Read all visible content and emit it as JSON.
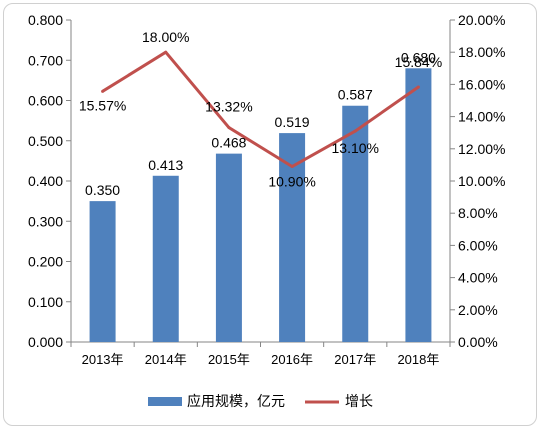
{
  "chart_data": {
    "type": "bar+line",
    "categories": [
      "2013年",
      "2014年",
      "2015年",
      "2016年",
      "2017年",
      "2018年"
    ],
    "bar_series": {
      "name": "应用规模，亿元",
      "values": [
        0.35,
        0.413,
        0.468,
        0.519,
        0.587,
        0.68
      ],
      "labels": [
        "0.350",
        "0.413",
        "0.468",
        "0.519",
        "0.587",
        "0.680"
      ],
      "color": "#4f81bd"
    },
    "line_series": {
      "name": "增长",
      "values": [
        15.57,
        18.0,
        13.32,
        10.9,
        13.1,
        15.84
      ],
      "labels": [
        "15.57%",
        "18.00%",
        "13.32%",
        "10.90%",
        "13.10%",
        "15.84%"
      ],
      "color": "#c0504d"
    },
    "y_left": {
      "ylim": [
        0,
        0.8
      ],
      "ticks": [
        "0.000",
        "0.100",
        "0.200",
        "0.300",
        "0.400",
        "0.500",
        "0.600",
        "0.700",
        "0.800"
      ]
    },
    "y_right": {
      "ylim": [
        0,
        20
      ],
      "ticks": [
        "0.00%",
        "2.00%",
        "4.00%",
        "6.00%",
        "8.00%",
        "10.00%",
        "12.00%",
        "14.00%",
        "16.00%",
        "18.00%",
        "20.00%"
      ]
    },
    "grid": false,
    "legend_position": "bottom"
  }
}
